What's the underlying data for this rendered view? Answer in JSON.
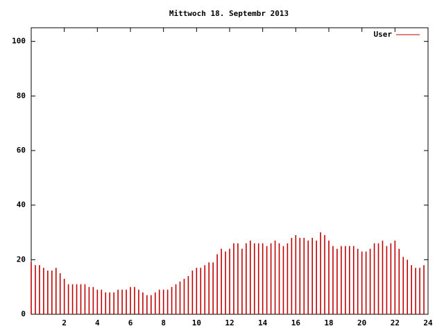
{
  "chart_data": {
    "type": "impulses",
    "title": "Mittwoch 18. Septembr 2013",
    "x": [
      0,
      0.25,
      0.5,
      0.75,
      1,
      1.25,
      1.5,
      1.75,
      2,
      2.25,
      2.5,
      2.75,
      3,
      3.25,
      3.5,
      3.75,
      4,
      4.25,
      4.5,
      4.75,
      5,
      5.25,
      5.5,
      5.75,
      6,
      6.25,
      6.5,
      6.75,
      7,
      7.25,
      7.5,
      7.75,
      8,
      8.25,
      8.5,
      8.75,
      9,
      9.25,
      9.5,
      9.75,
      10,
      10.25,
      10.5,
      10.75,
      11,
      11.25,
      11.5,
      11.75,
      12,
      12.25,
      12.5,
      12.75,
      13,
      13.25,
      13.5,
      13.75,
      14,
      14.25,
      14.5,
      14.75,
      15,
      15.25,
      15.5,
      15.75,
      16,
      16.25,
      16.5,
      16.75,
      17,
      17.25,
      17.5,
      17.75,
      18,
      18.25,
      18.5,
      18.75,
      19,
      19.25,
      19.5,
      19.75,
      20,
      20.25,
      20.5,
      20.75,
      21,
      21.25,
      21.5,
      21.75,
      22,
      22.25,
      22.5,
      22.75,
      23,
      23.25,
      23.5,
      23.75
    ],
    "series": [
      {
        "name": "User",
        "color": "#c00000",
        "values": [
          19,
          18,
          18,
          17,
          16,
          16,
          17,
          15,
          13,
          11,
          11,
          11,
          11,
          11,
          10,
          10,
          9,
          9,
          8,
          8,
          8,
          9,
          9,
          9,
          10,
          10,
          9,
          8,
          7,
          7,
          8,
          9,
          9,
          9,
          10,
          11,
          12,
          13,
          14,
          16,
          17,
          17,
          18,
          19,
          19,
          22,
          24,
          23,
          24,
          26,
          26,
          24,
          26,
          27,
          26,
          26,
          26,
          25,
          26,
          27,
          26,
          25,
          26,
          28,
          29,
          28,
          28,
          27,
          28,
          27,
          30,
          29,
          27,
          25,
          24,
          25,
          25,
          25,
          25,
          24,
          23,
          23,
          24,
          26,
          26,
          27,
          25,
          26,
          27,
          24,
          21,
          20,
          18,
          17,
          17,
          18
        ]
      }
    ],
    "xlim": [
      0,
      24
    ],
    "xticks": [
      2,
      4,
      6,
      8,
      10,
      12,
      14,
      16,
      18,
      20,
      22,
      24
    ],
    "ylim": [
      0,
      105
    ],
    "yticks": [
      0,
      20,
      40,
      60,
      80,
      100
    ],
    "legend": "top-right"
  }
}
